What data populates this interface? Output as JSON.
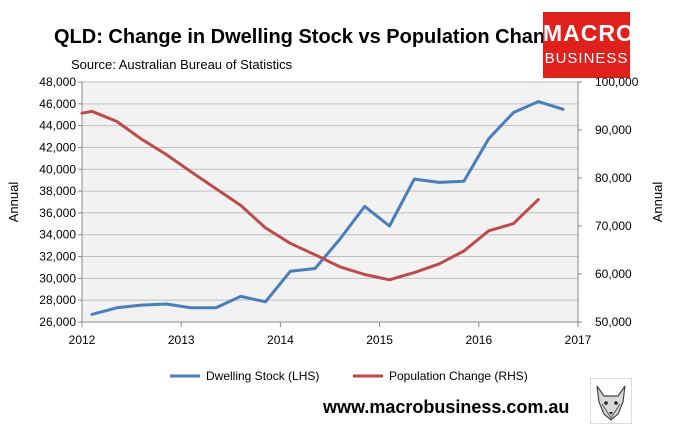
{
  "header": {
    "title": "QLD: Change in Dwelling Stock vs Population Change",
    "source": "Source: Australian Bureau of Statistics"
  },
  "logo": {
    "line1": "MACRO",
    "line2": "BUSINESS",
    "color": "#e0201b"
  },
  "footer": {
    "url": "www.macrobusiness.com.au"
  },
  "chart_data": {
    "type": "line",
    "title": "QLD: Change in Dwelling Stock vs Population Change",
    "subtitle": "Source: Australian Bureau of Statistics",
    "x_ticks": [
      2012,
      2013,
      2014,
      2015,
      2016,
      2017
    ],
    "xlim": [
      2012,
      2017
    ],
    "left_axis": {
      "label": "Annual",
      "ylim": [
        26000,
        48000
      ],
      "ticks": [
        "26,000",
        "28,000",
        "30,000",
        "32,000",
        "34,000",
        "36,000",
        "38,000",
        "40,000",
        "42,000",
        "44,000",
        "46,000",
        "48,000"
      ],
      "tick_values": [
        26000,
        28000,
        30000,
        32000,
        34000,
        36000,
        38000,
        40000,
        42000,
        44000,
        46000,
        48000
      ]
    },
    "right_axis": {
      "label": "Annual",
      "ylim": [
        50000,
        100000
      ],
      "ticks": [
        "50,000",
        "60,000",
        "70,000",
        "80,000",
        "90,000",
        "100,000"
      ],
      "tick_values": [
        50000,
        60000,
        70000,
        80000,
        90000,
        100000
      ]
    },
    "grid": "horizontal",
    "plot_background": "#f2f2f2",
    "legend_position": "bottom",
    "series": [
      {
        "name": "Dwelling Stock (LHS)",
        "axis": "left",
        "color": "#4a7ebb",
        "x": [
          2012.1,
          2012.35,
          2012.6,
          2012.85,
          2013.1,
          2013.35,
          2013.6,
          2013.85,
          2014.1,
          2014.35,
          2014.6,
          2014.85,
          2015.1,
          2015.35,
          2015.6,
          2015.85,
          2016.1,
          2016.35,
          2016.6,
          2016.85
        ],
        "values": [
          26700,
          27300,
          27550,
          27650,
          27300,
          27300,
          28350,
          27850,
          30650,
          30900,
          33600,
          36600,
          34800,
          39100,
          38800,
          38900,
          42800,
          45200,
          46200,
          45500
        ]
      },
      {
        "name": "Population Change (RHS)",
        "axis": "right",
        "color": "#be4b48",
        "x": [
          2012,
          2012.1,
          2012.35,
          2012.6,
          2012.85,
          2013.1,
          2013.35,
          2013.6,
          2013.85,
          2014.1,
          2014.35,
          2014.6,
          2014.85,
          2015.1,
          2015.35,
          2015.6,
          2015.85,
          2016.1,
          2016.35,
          2016.6
        ],
        "values": [
          93500,
          93900,
          91800,
          88100,
          84900,
          81300,
          77800,
          74300,
          69600,
          66400,
          64000,
          61500,
          59900,
          58800,
          60300,
          62100,
          64800,
          69000,
          70500,
          75500
        ]
      }
    ]
  }
}
